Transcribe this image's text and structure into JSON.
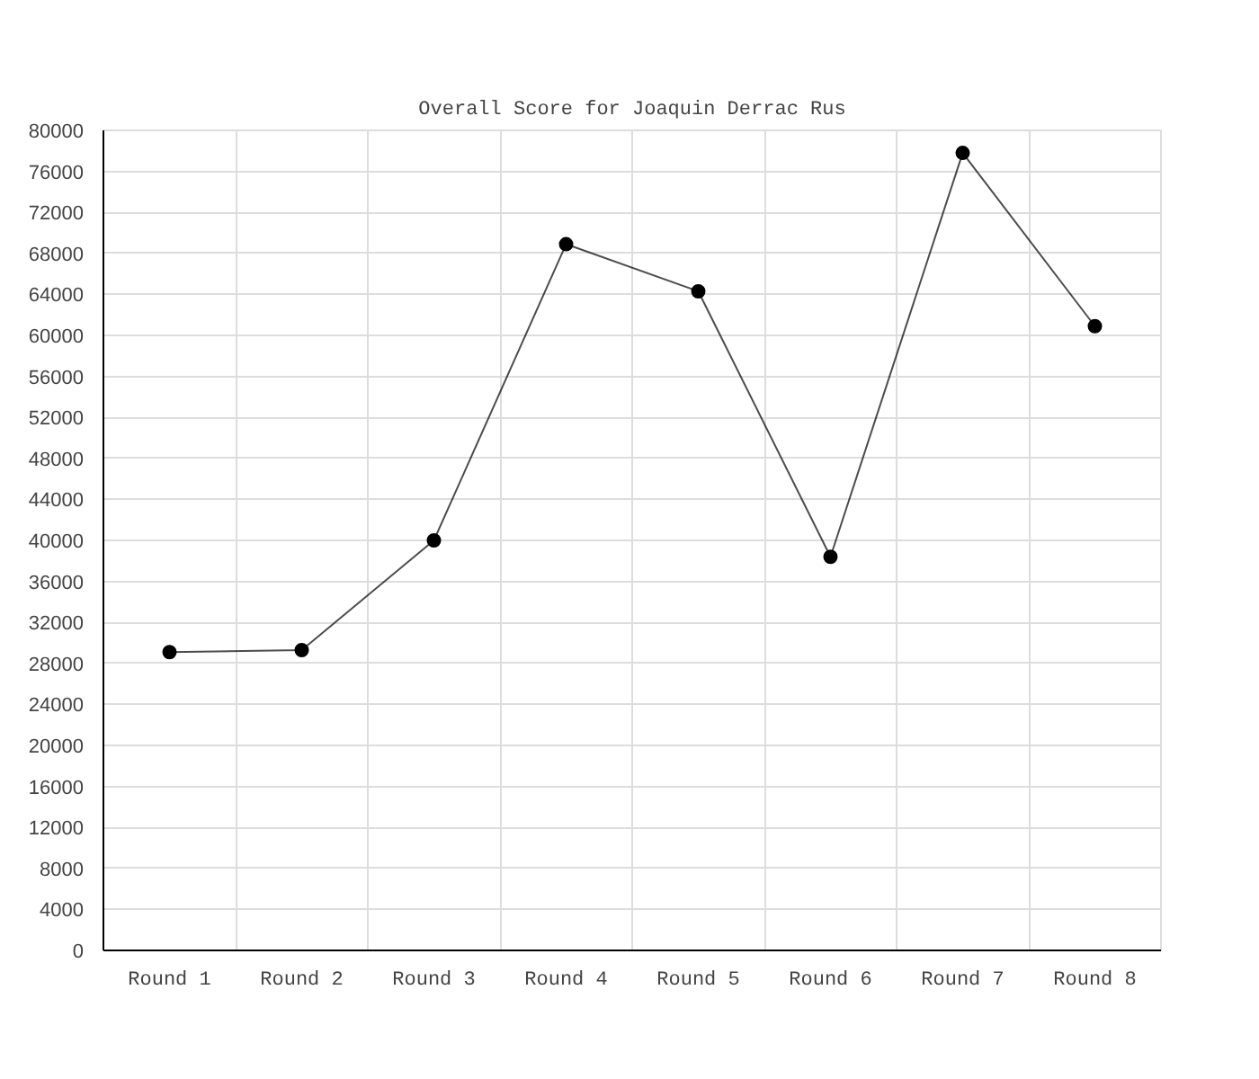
{
  "chart_data": {
    "type": "line",
    "title": "Overall Score for Joaquin Derrac Rus",
    "categories": [
      "Round 1",
      "Round 2",
      "Round 3",
      "Round 4",
      "Round 5",
      "Round 6",
      "Round 7",
      "Round 8"
    ],
    "series": [
      {
        "color": "#000000",
        "values": [
          29100,
          29300,
          40000,
          68900,
          64300,
          38400,
          77800,
          60900
        ]
      }
    ],
    "ylim": [
      0,
      80000
    ],
    "yticks": [
      0,
      4000,
      8000,
      12000,
      16000,
      20000,
      24000,
      28000,
      32000,
      36000,
      40000,
      44000,
      48000,
      52000,
      56000,
      60000,
      64000,
      68000,
      72000,
      76000,
      80000
    ],
    "grid": true,
    "marker": "circle",
    "line_style": "solid"
  }
}
